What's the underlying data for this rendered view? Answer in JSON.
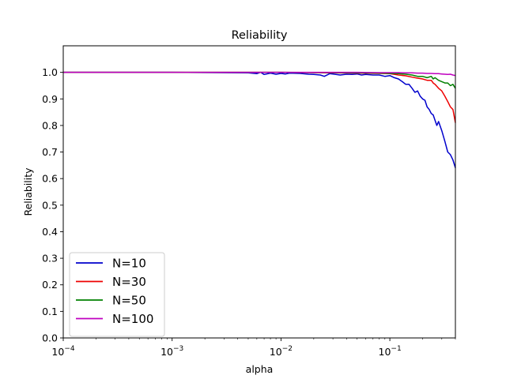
{
  "chart_data": {
    "type": "line",
    "title": "Reliability",
    "xlabel": "alpha",
    "ylabel": "Reliability",
    "xscale": "log",
    "xlim": [
      0.0001,
      0.4
    ],
    "ylim": [
      0.0,
      1.1
    ],
    "xticks": [
      {
        "value": 0.0001,
        "base": "10",
        "exp": "−4"
      },
      {
        "value": 0.001,
        "base": "10",
        "exp": "−3"
      },
      {
        "value": 0.01,
        "base": "10",
        "exp": "−2"
      },
      {
        "value": 0.1,
        "base": "10",
        "exp": "−1"
      }
    ],
    "yticks": [
      "0.0",
      "0.1",
      "0.2",
      "0.3",
      "0.4",
      "0.5",
      "0.6",
      "0.7",
      "0.8",
      "0.9",
      "1.0"
    ],
    "legend_position": "lower-left",
    "series": [
      {
        "name": "N=10",
        "color": "#0000cc",
        "x": [
          0.0001,
          0.001,
          0.005,
          0.006,
          0.0065,
          0.007,
          0.008,
          0.009,
          0.01,
          0.011,
          0.012,
          0.015,
          0.018,
          0.02,
          0.023,
          0.025,
          0.028,
          0.03,
          0.035,
          0.04,
          0.045,
          0.05,
          0.055,
          0.06,
          0.07,
          0.08,
          0.09,
          0.1,
          0.11,
          0.12,
          0.13,
          0.14,
          0.15,
          0.16,
          0.17,
          0.18,
          0.19,
          0.2,
          0.21,
          0.22,
          0.23,
          0.24,
          0.25,
          0.26,
          0.27,
          0.28,
          0.3,
          0.32,
          0.34,
          0.36,
          0.38,
          0.4
        ],
        "y": [
          1.0,
          1.0,
          0.998,
          0.995,
          1.0,
          0.992,
          0.997,
          0.993,
          0.996,
          0.994,
          0.997,
          0.996,
          0.993,
          0.992,
          0.99,
          0.985,
          0.995,
          0.994,
          0.99,
          0.993,
          0.992,
          0.994,
          0.99,
          0.992,
          0.99,
          0.99,
          0.985,
          0.988,
          0.98,
          0.975,
          0.965,
          0.955,
          0.955,
          0.94,
          0.925,
          0.93,
          0.91,
          0.9,
          0.895,
          0.87,
          0.86,
          0.845,
          0.84,
          0.82,
          0.8,
          0.815,
          0.78,
          0.74,
          0.7,
          0.69,
          0.67,
          0.64
        ]
      },
      {
        "name": "N=30",
        "color": "#ee0000",
        "x": [
          0.0001,
          0.001,
          0.01,
          0.03,
          0.05,
          0.08,
          0.1,
          0.12,
          0.14,
          0.16,
          0.18,
          0.2,
          0.22,
          0.24,
          0.25,
          0.26,
          0.28,
          0.3,
          0.32,
          0.34,
          0.35,
          0.36,
          0.38,
          0.4
        ],
        "y": [
          1.0,
          1.0,
          1.0,
          0.998,
          0.997,
          0.996,
          0.995,
          0.99,
          0.987,
          0.982,
          0.978,
          0.975,
          0.97,
          0.97,
          0.96,
          0.955,
          0.94,
          0.93,
          0.91,
          0.89,
          0.88,
          0.87,
          0.86,
          0.81
        ]
      },
      {
        "name": "N=50",
        "color": "#008000",
        "x": [
          0.0001,
          0.001,
          0.01,
          0.03,
          0.05,
          0.08,
          0.1,
          0.12,
          0.14,
          0.16,
          0.18,
          0.2,
          0.22,
          0.24,
          0.25,
          0.26,
          0.28,
          0.3,
          0.32,
          0.34,
          0.36,
          0.38,
          0.4
        ],
        "y": [
          1.0,
          1.0,
          1.0,
          0.999,
          0.998,
          0.997,
          0.996,
          0.995,
          0.993,
          0.99,
          0.985,
          0.985,
          0.98,
          0.985,
          0.975,
          0.98,
          0.97,
          0.965,
          0.96,
          0.96,
          0.95,
          0.955,
          0.94
        ]
      },
      {
        "name": "N=100",
        "color": "#bf00bf",
        "x": [
          0.0001,
          0.001,
          0.01,
          0.03,
          0.05,
          0.08,
          0.1,
          0.12,
          0.14,
          0.16,
          0.18,
          0.2,
          0.22,
          0.24,
          0.26,
          0.28,
          0.3,
          0.32,
          0.34,
          0.36,
          0.38,
          0.4
        ],
        "y": [
          1.0,
          1.0,
          1.0,
          1.0,
          1.0,
          0.999,
          0.999,
          0.999,
          0.998,
          0.998,
          0.997,
          0.997,
          0.996,
          0.996,
          0.995,
          0.995,
          0.994,
          0.993,
          0.992,
          0.993,
          0.99,
          0.988
        ]
      }
    ]
  }
}
